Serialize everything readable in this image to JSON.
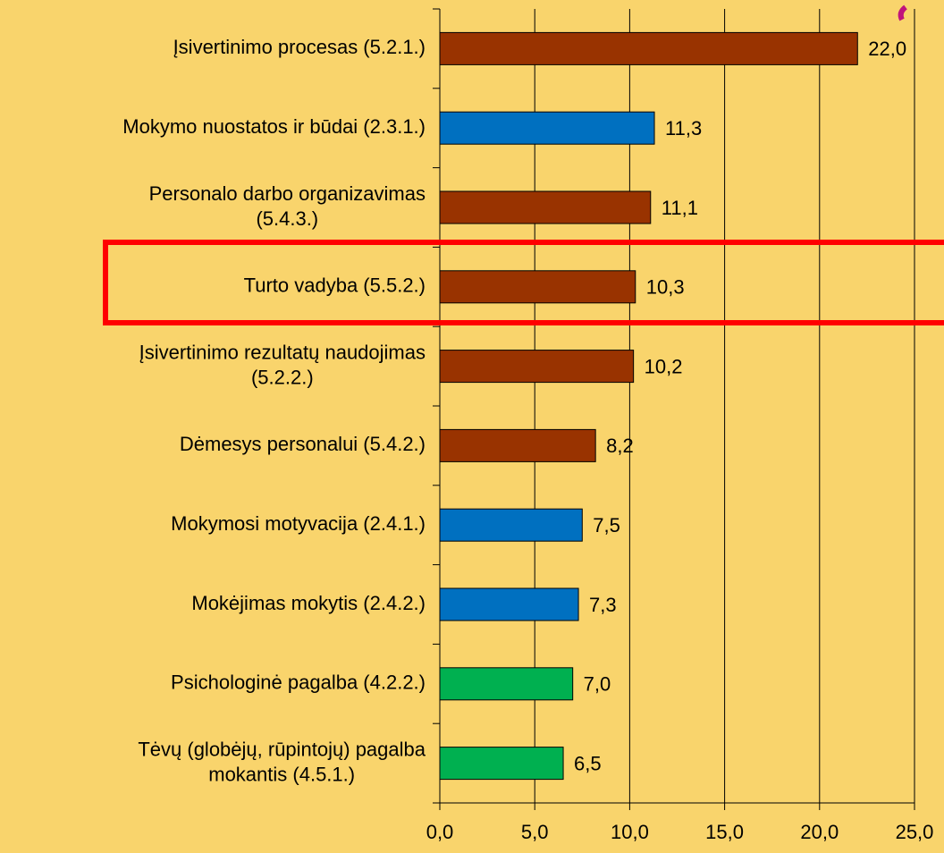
{
  "chart_data": {
    "type": "bar",
    "orientation": "horizontal",
    "categories": [
      "Įsivertinimo procesas (5.2.1.)",
      "Mokymo nuostatos ir būdai (2.3.1.)",
      "Personalo darbo organizavimas\n(5.4.3.)",
      "Turto vadyba (5.5.2.)",
      "Įsivertinimo rezultatų naudojimas\n(5.2.2.)",
      "Dėmesys personalui (5.4.2.)",
      "Mokymosi motyvacija (2.4.1.)",
      "Mokėjimas mokytis (2.4.2.)",
      "Psichologinė pagalba (4.2.2.)",
      "Tėvų (globėjų, rūpintojų) pagalba\nmokantis (4.5.1.)"
    ],
    "values": [
      22.0,
      11.3,
      11.1,
      10.3,
      10.2,
      8.2,
      7.5,
      7.3,
      7.0,
      6.5
    ],
    "value_labels": [
      "22,0",
      "11,3",
      "11,1",
      "10,3",
      "10,2",
      "8,2",
      "7,5",
      "7,3",
      "7,0",
      "6,5"
    ],
    "colors": [
      "#993300",
      "#0070c0",
      "#993300",
      "#993300",
      "#993300",
      "#993300",
      "#0070c0",
      "#0070c0",
      "#00b050",
      "#00b050"
    ],
    "xlim": [
      0,
      25
    ],
    "xticks": [
      {
        "value": 0,
        "label": "0,0"
      },
      {
        "value": 5,
        "label": "5,0"
      },
      {
        "value": 10,
        "label": "10,0"
      },
      {
        "value": 15,
        "label": "15,0"
      },
      {
        "value": 20,
        "label": "20,0"
      },
      {
        "value": 25,
        "label": "25,0"
      }
    ],
    "grid": true
  }
}
